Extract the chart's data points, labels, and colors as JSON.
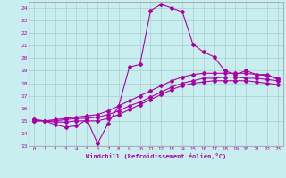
{
  "xlabel": "Windchill (Refroidissement éolien,°C)",
  "bg_color": "#c8eef0",
  "line_color": "#aa00aa",
  "grid_color": "#aacccc",
  "xlim": [
    -0.5,
    23.5
  ],
  "ylim": [
    13,
    24.5
  ],
  "yticks": [
    13,
    14,
    15,
    16,
    17,
    18,
    19,
    20,
    21,
    22,
    23,
    24
  ],
  "xticks": [
    0,
    1,
    2,
    3,
    4,
    5,
    6,
    7,
    8,
    9,
    10,
    11,
    12,
    13,
    14,
    15,
    16,
    17,
    18,
    19,
    20,
    21,
    22,
    23
  ],
  "line1_x": [
    0,
    1,
    2,
    3,
    4,
    5,
    6,
    7,
    8,
    9,
    10,
    11,
    12,
    13,
    14,
    15,
    16,
    17,
    18,
    19,
    20,
    21,
    22,
    23
  ],
  "line1_y": [
    15.1,
    15.0,
    14.7,
    14.5,
    14.6,
    15.1,
    13.2,
    14.8,
    16.2,
    19.3,
    19.5,
    23.8,
    24.3,
    24.0,
    23.7,
    21.1,
    20.5,
    20.1,
    19.0,
    18.7,
    19.0,
    18.7,
    18.7,
    18.3
  ],
  "line2_x": [
    0,
    1,
    2,
    3,
    4,
    5,
    6,
    7,
    8,
    9,
    10,
    11,
    12,
    13,
    14,
    15,
    16,
    17,
    18,
    19,
    20,
    21,
    22,
    23
  ],
  "line2_y": [
    15.1,
    15.0,
    15.1,
    15.2,
    15.3,
    15.4,
    15.5,
    15.8,
    16.2,
    16.6,
    17.0,
    17.4,
    17.8,
    18.2,
    18.5,
    18.7,
    18.8,
    18.8,
    18.8,
    18.8,
    18.8,
    18.7,
    18.6,
    18.4
  ],
  "line3_x": [
    0,
    1,
    2,
    3,
    4,
    5,
    6,
    7,
    8,
    9,
    10,
    11,
    12,
    13,
    14,
    15,
    16,
    17,
    18,
    19,
    20,
    21,
    22,
    23
  ],
  "line3_y": [
    15.0,
    15.0,
    15.0,
    15.1,
    15.2,
    15.2,
    15.3,
    15.5,
    15.8,
    16.2,
    16.5,
    16.9,
    17.3,
    17.7,
    18.0,
    18.2,
    18.4,
    18.4,
    18.5,
    18.5,
    18.4,
    18.4,
    18.3,
    18.2
  ],
  "line4_x": [
    0,
    1,
    2,
    3,
    4,
    5,
    6,
    7,
    8,
    9,
    10,
    11,
    12,
    13,
    14,
    15,
    16,
    17,
    18,
    19,
    20,
    21,
    22,
    23
  ],
  "line4_y": [
    15.0,
    15.0,
    14.9,
    14.9,
    15.0,
    15.0,
    15.0,
    15.2,
    15.5,
    15.9,
    16.3,
    16.7,
    17.1,
    17.5,
    17.8,
    18.0,
    18.1,
    18.2,
    18.2,
    18.2,
    18.2,
    18.1,
    18.0,
    17.9
  ]
}
